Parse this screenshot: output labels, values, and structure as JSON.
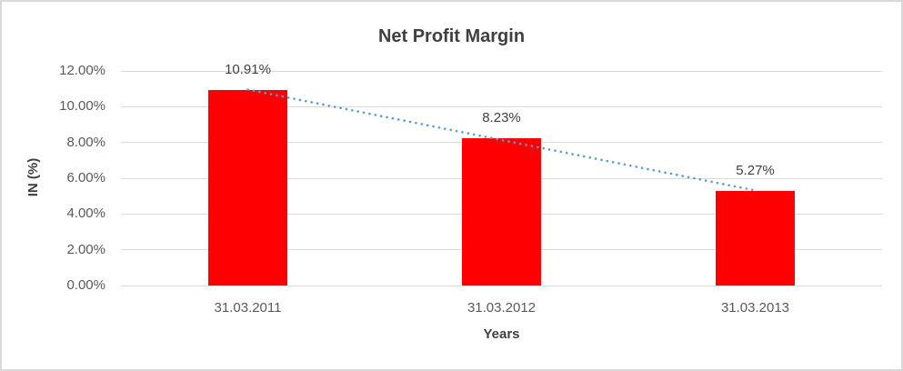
{
  "window": {
    "background_color": "#FFFFFF",
    "border_color": "#D9D9D9"
  },
  "chart_data": {
    "type": "bar",
    "title": "Net Profit Margin",
    "xlabel": "Years",
    "ylabel": "IN (%)",
    "categories": [
      "31.03.2011",
      "31.03.2012",
      "31.03.2013"
    ],
    "values": [
      10.91,
      8.23,
      5.27
    ],
    "data_labels": [
      "10.91%",
      "8.23%",
      "5.27%"
    ],
    "ylim": [
      0,
      12
    ],
    "ytick_step": 2,
    "ytick_labels": [
      "0.00%",
      "2.00%",
      "4.00%",
      "6.00%",
      "8.00%",
      "10.00%",
      "12.00%"
    ],
    "grid": true,
    "legend": false,
    "bar_color": "#FF0000",
    "gridline_color": "#D9D9D9",
    "title_color": "#404040",
    "tick_label_color": "#595959",
    "trendline": {
      "type": "linear",
      "style": "dotted",
      "color": "#5B9BD5"
    }
  }
}
